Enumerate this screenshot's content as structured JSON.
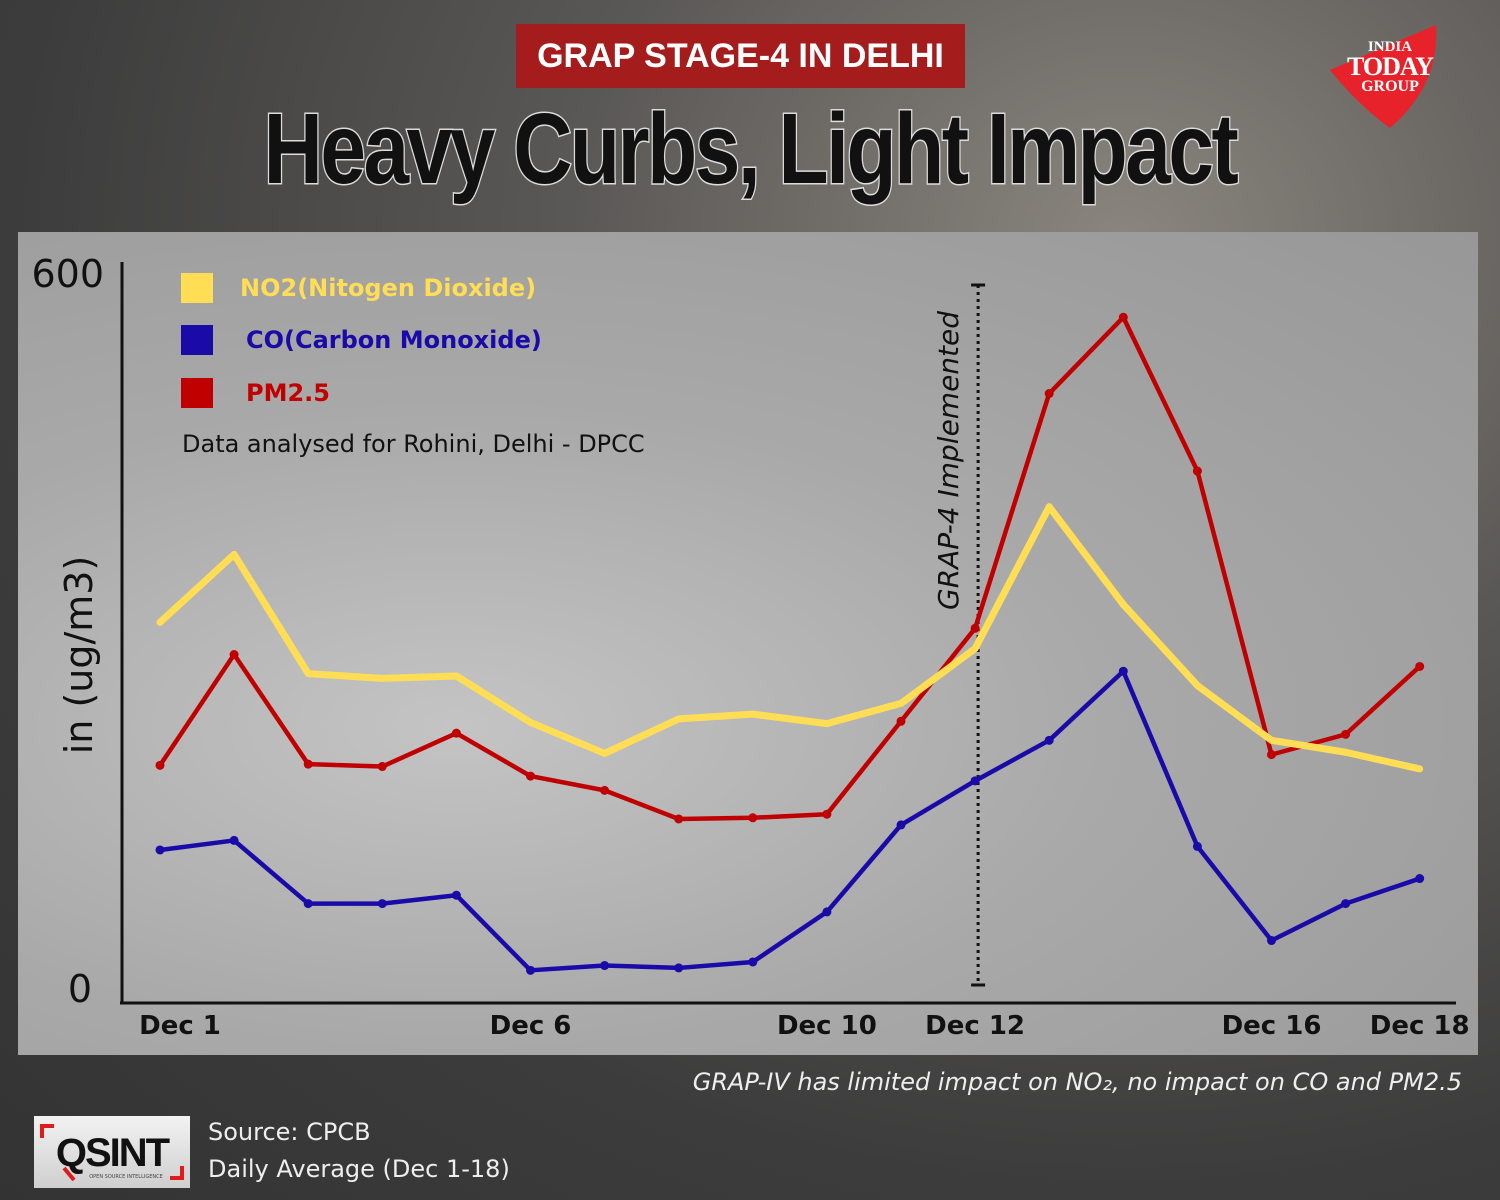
{
  "banner": "GRAP STAGE-4 IN DELHI",
  "headline": "Heavy Curbs, Light Impact",
  "logo": {
    "line1": "INDIA",
    "line2": "TODAY",
    "line3": "GROUP",
    "color": "#e8222a"
  },
  "osint_logo": {
    "text": "QSINT",
    "subtitle": "OPEN SOURCE INTELLIGENCE"
  },
  "source": "Source: CPCB",
  "period": "Daily Average (Dec 1-18)",
  "note": "GRAP-IV has limited impact on NO₂, no impact on CO and PM2.5",
  "chart_data": {
    "type": "line",
    "ylabel": "in (ug/m3)",
    "ylim": [
      0,
      600
    ],
    "y_ticks": [
      "0",
      "600"
    ],
    "x": [
      "Dec 1",
      "Dec 2",
      "Dec 3",
      "Dec 4",
      "Dec 5",
      "Dec 6",
      "Dec 7",
      "Dec 8",
      "Dec 9",
      "Dec 10",
      "Dec 11",
      "Dec 12",
      "Dec 13",
      "Dec 14",
      "Dec 15",
      "Dec 16",
      "Dec 17",
      "Dec 18"
    ],
    "x_tick_labels": [
      {
        "index": 0,
        "label": "Dec 1"
      },
      {
        "index": 5,
        "label": "Dec 6"
      },
      {
        "index": 9,
        "label": "Dec 10"
      },
      {
        "index": 11,
        "label": "Dec 12"
      },
      {
        "index": 15,
        "label": "Dec 16"
      },
      {
        "index": 17,
        "label": "Dec 18"
      }
    ],
    "legend_placement": "top-left",
    "legend_note": "Data analysed for Rohini, Delhi - DPCC",
    "annotation": {
      "index": 11,
      "label": "GRAP-4  Implemented"
    },
    "series": [
      {
        "name": "NO2(Nitogen Dioxide)",
        "color": "#ffdd55",
        "values": [
          306,
          363,
          263,
          259,
          261,
          222,
          196,
          225,
          229,
          221,
          238,
          284,
          403,
          321,
          253,
          207,
          197,
          183
        ]
      },
      {
        "name": "CO(Carbon Monoxide)",
        "color": "#1a0aa8",
        "values": [
          115,
          123,
          70,
          70,
          77,
          14,
          18,
          16,
          21,
          63,
          136,
          173,
          207,
          265,
          118,
          39,
          70,
          91
        ]
      },
      {
        "name": "PM2.5",
        "color": "#c00000",
        "values": [
          186,
          279,
          187,
          185,
          213,
          177,
          165,
          141,
          142,
          145,
          223,
          301,
          498,
          562,
          433,
          195,
          212,
          269
        ]
      }
    ]
  }
}
